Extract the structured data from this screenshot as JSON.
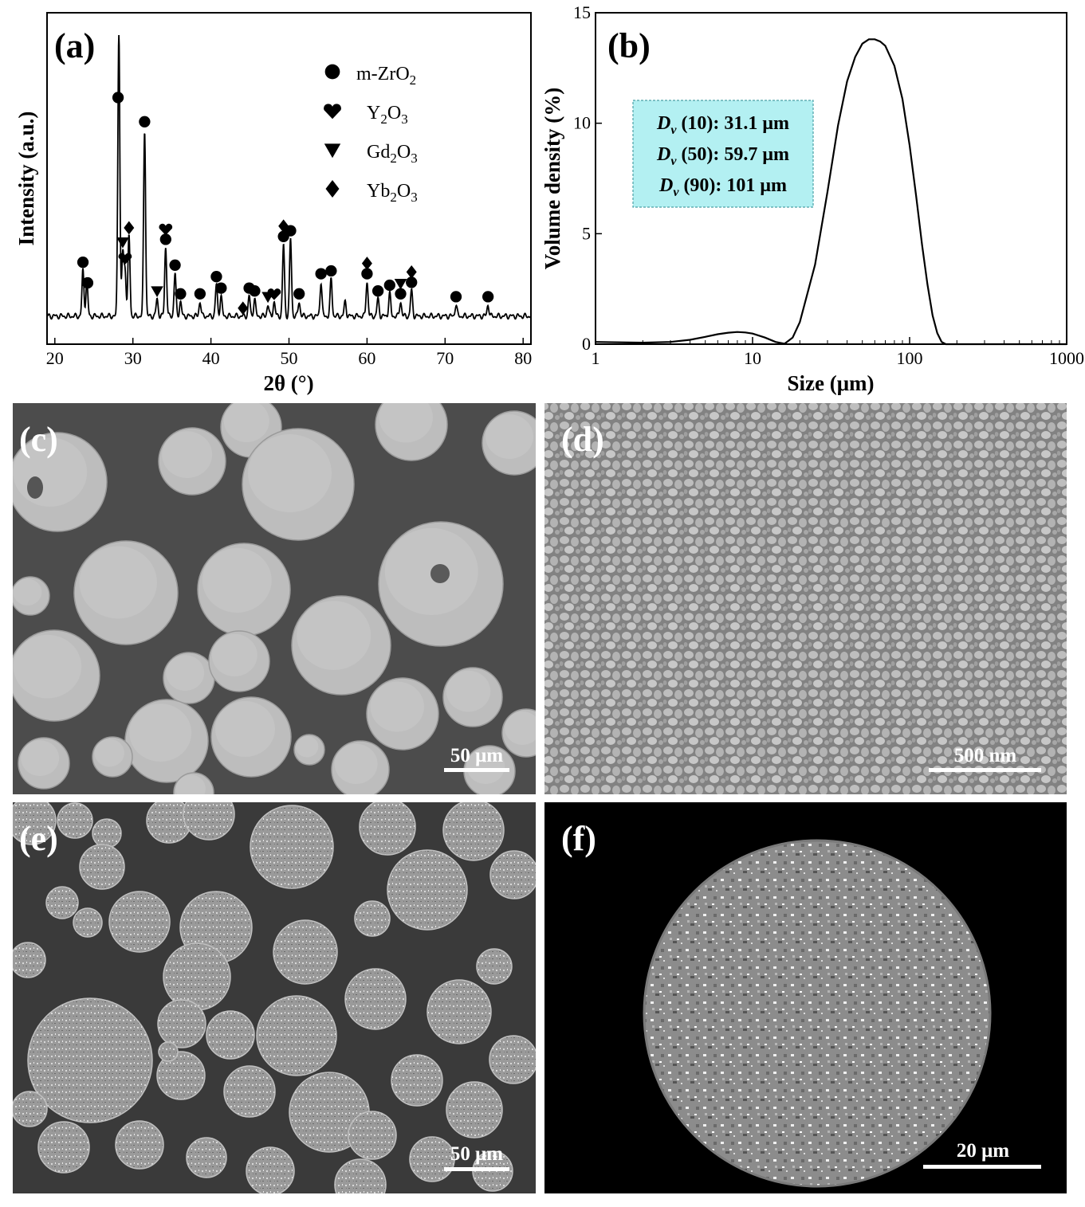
{
  "panels": {
    "a": "(a)",
    "b": "(b)",
    "c": "(c)",
    "d": "(d)",
    "e": "(e)",
    "f": "(f)"
  },
  "chart_data": [
    {
      "panel": "a",
      "type": "line",
      "xlabel": "2θ (°)",
      "ylabel": "Intensity (a.u.)",
      "xlim": [
        19,
        81
      ],
      "xticks": [
        20,
        30,
        40,
        50,
        60,
        70,
        80
      ],
      "y_ticks_shown": false,
      "baseline": 0.02,
      "peaks": [
        {
          "x": 23.6,
          "h": 0.16
        },
        {
          "x": 24.1,
          "h": 0.12
        },
        {
          "x": 28.2,
          "h": 1.0
        },
        {
          "x": 28.7,
          "h": 0.22
        },
        {
          "x": 29.0,
          "h": 0.16
        },
        {
          "x": 29.5,
          "h": 0.28
        },
        {
          "x": 31.5,
          "h": 0.65
        },
        {
          "x": 33.1,
          "h": 0.06
        },
        {
          "x": 34.2,
          "h": 0.24
        },
        {
          "x": 35.4,
          "h": 0.15
        },
        {
          "x": 36.1,
          "h": 0.05
        },
        {
          "x": 38.6,
          "h": 0.05
        },
        {
          "x": 40.7,
          "h": 0.11
        },
        {
          "x": 41.3,
          "h": 0.07
        },
        {
          "x": 44.9,
          "h": 0.07
        },
        {
          "x": 45.6,
          "h": 0.06
        },
        {
          "x": 47.3,
          "h": 0.04
        },
        {
          "x": 48.1,
          "h": 0.05
        },
        {
          "x": 49.3,
          "h": 0.25
        },
        {
          "x": 50.2,
          "h": 0.27
        },
        {
          "x": 51.3,
          "h": 0.05
        },
        {
          "x": 54.1,
          "h": 0.12
        },
        {
          "x": 55.4,
          "h": 0.13
        },
        {
          "x": 57.2,
          "h": 0.05
        },
        {
          "x": 60.0,
          "h": 0.12
        },
        {
          "x": 61.4,
          "h": 0.06
        },
        {
          "x": 62.9,
          "h": 0.08
        },
        {
          "x": 64.3,
          "h": 0.05
        },
        {
          "x": 65.7,
          "h": 0.09
        },
        {
          "x": 71.4,
          "h": 0.04
        },
        {
          "x": 75.5,
          "h": 0.04
        }
      ],
      "legend": [
        {
          "marker": "circle",
          "label_pre": "m-ZrO",
          "sub": "2",
          "label_post": ""
        },
        {
          "marker": "heart",
          "label_pre": "Y",
          "sub": "2",
          "label_post": "O",
          "sub2": "3"
        },
        {
          "marker": "triangle-down",
          "label_pre": "Gd",
          "sub": "2",
          "label_post": "O",
          "sub2": "3"
        },
        {
          "marker": "diamond",
          "label_pre": "Yb",
          "sub": "2",
          "label_post": "O",
          "sub2": "3"
        }
      ],
      "markers": [
        {
          "x": 23.6,
          "stack": [
            "circle"
          ]
        },
        {
          "x": 24.2,
          "stack": [
            "circle"
          ]
        },
        {
          "x": 28.1,
          "stack": [
            "circle"
          ]
        },
        {
          "x": 28.7,
          "stack": [
            "triangle-down"
          ]
        },
        {
          "x": 29.0,
          "stack": [
            "heart"
          ]
        },
        {
          "x": 29.5,
          "stack": [
            "diamond"
          ]
        },
        {
          "x": 31.5,
          "stack": [
            "circle"
          ]
        },
        {
          "x": 33.1,
          "stack": [
            "triangle-down"
          ]
        },
        {
          "x": 34.2,
          "stack": [
            "circle",
            "heart"
          ]
        },
        {
          "x": 35.4,
          "stack": [
            "circle"
          ]
        },
        {
          "x": 36.1,
          "stack": [
            "circle"
          ]
        },
        {
          "x": 38.6,
          "stack": [
            "circle"
          ]
        },
        {
          "x": 40.7,
          "stack": [
            "circle"
          ]
        },
        {
          "x": 41.3,
          "stack": [
            "circle"
          ]
        },
        {
          "x": 44.1,
          "stack": [
            "diamond"
          ]
        },
        {
          "x": 44.9,
          "stack": [
            "circle"
          ]
        },
        {
          "x": 45.6,
          "stack": [
            "circle"
          ]
        },
        {
          "x": 47.3,
          "stack": [
            "triangle-down"
          ]
        },
        {
          "x": 48.1,
          "stack": [
            "heart"
          ]
        },
        {
          "x": 49.3,
          "stack": [
            "circle",
            "diamond"
          ]
        },
        {
          "x": 50.2,
          "stack": [
            "circle"
          ]
        },
        {
          "x": 51.3,
          "stack": [
            "circle"
          ]
        },
        {
          "x": 54.1,
          "stack": [
            "circle"
          ]
        },
        {
          "x": 55.4,
          "stack": [
            "circle"
          ]
        },
        {
          "x": 60.0,
          "stack": [
            "circle",
            "diamond"
          ]
        },
        {
          "x": 61.4,
          "stack": [
            "circle"
          ]
        },
        {
          "x": 62.9,
          "stack": [
            "circle"
          ]
        },
        {
          "x": 64.3,
          "stack": [
            "circle",
            "triangle-down"
          ]
        },
        {
          "x": 65.7,
          "stack": [
            "circle",
            "diamond"
          ]
        },
        {
          "x": 71.4,
          "stack": [
            "circle"
          ]
        },
        {
          "x": 75.5,
          "stack": [
            "circle"
          ]
        }
      ]
    },
    {
      "panel": "b",
      "type": "line",
      "xlabel": "Size (μm)",
      "ylabel": "Volume density (%)",
      "x_scale": "log",
      "xlim": [
        1,
        1000
      ],
      "ylim": [
        0,
        15
      ],
      "xticks": [
        1,
        10,
        100,
        1000
      ],
      "yticks": [
        0,
        5,
        10,
        15
      ],
      "x": [
        1,
        2,
        3,
        4,
        5,
        6,
        7,
        8,
        9,
        10,
        12,
        14,
        16,
        18,
        20,
        25,
        30,
        35,
        40,
        45,
        50,
        55,
        60,
        65,
        70,
        80,
        90,
        100,
        110,
        120,
        130,
        140,
        150,
        160,
        170,
        200,
        500,
        1000
      ],
      "y": [
        0.1,
        0.07,
        0.1,
        0.2,
        0.33,
        0.45,
        0.52,
        0.55,
        0.53,
        0.48,
        0.3,
        0.1,
        0.02,
        0.3,
        1.0,
        3.6,
        6.9,
        9.9,
        11.9,
        13.0,
        13.6,
        13.8,
        13.8,
        13.7,
        13.5,
        12.6,
        11.1,
        9.0,
        6.7,
        4.5,
        2.7,
        1.3,
        0.5,
        0.1,
        0.0,
        0.0,
        0.0,
        0.0
      ],
      "annotation": [
        {
          "sym": "D",
          "sub": "v",
          "text": " (10): 31.1 μm"
        },
        {
          "sym": "D",
          "sub": "v",
          "text": " (50): 59.7 μm"
        },
        {
          "sym": "D",
          "sub": "v",
          "text": " (90): 101 μm"
        }
      ]
    }
  ],
  "images": {
    "c": {
      "scale_bar": "50 μm"
    },
    "d": {
      "scale_bar": "500 nm"
    },
    "e": {
      "scale_bar": "50 μm"
    },
    "f": {
      "scale_bar": "20 μm"
    }
  },
  "colors": {
    "annotation_fill": "#b3f0f2",
    "annotation_border": "#4aa0a6",
    "sem_c_bg": "#4c4c4c",
    "sem_d_bg": "#8e8e8e",
    "sem_e_bg": "#3a3a3a",
    "sem_f_bg": "#000000"
  }
}
